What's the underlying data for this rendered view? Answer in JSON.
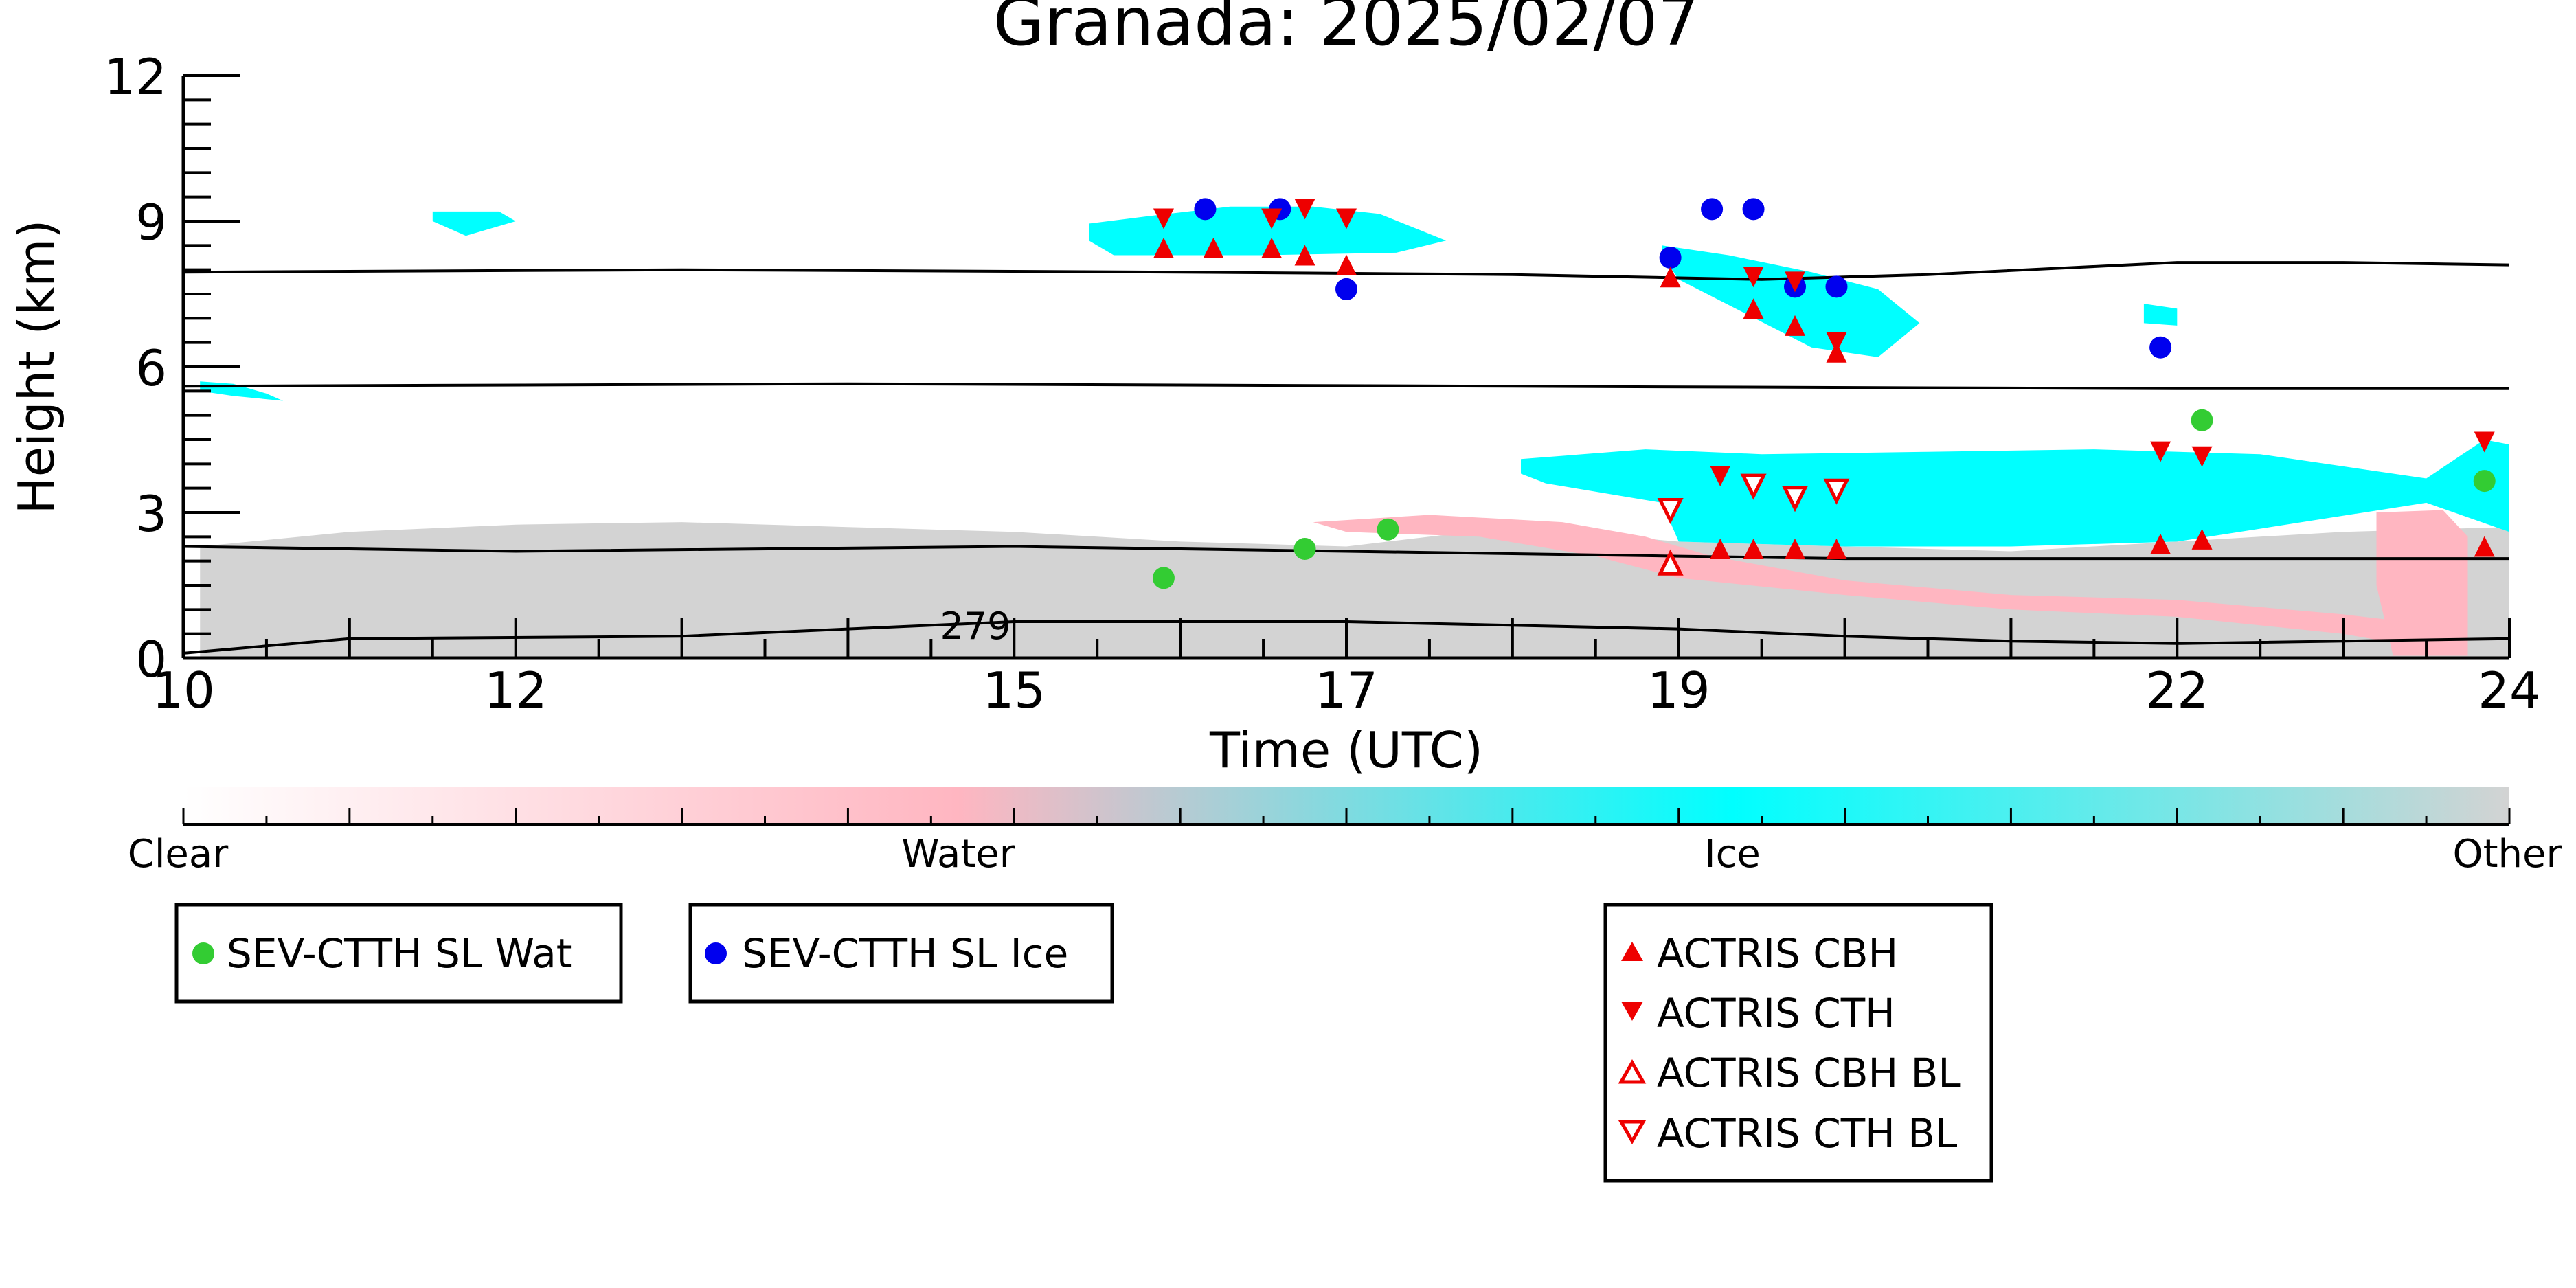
{
  "chart_data": {
    "type": "scatter",
    "title": "Granada: 2025/02/07",
    "xlabel": "Time (UTC)",
    "ylabel": "Height (km)",
    "xlim": [
      10,
      24
    ],
    "ylim": [
      0,
      12
    ],
    "x_tick_labels": [
      "10",
      "12",
      "15",
      "17",
      "19",
      "22",
      "24"
    ],
    "y_tick_labels": [
      "0",
      "3",
      "6",
      "9",
      "12"
    ],
    "contour_label": "279",
    "colorbar": {
      "labels": [
        "Clear",
        "Water",
        "Ice",
        "Other"
      ],
      "colors": [
        "#ffffff",
        "#ffb6c1",
        "#00ffff",
        "#d3d3d3"
      ]
    },
    "legend": {
      "sev": [
        "SEV-CTTH SL Wat",
        "SEV-CTTH SL Ice"
      ],
      "actris": [
        "ACTRIS CBH",
        "ACTRIS CTH",
        "ACTRIS CBH BL",
        "ACTRIS CTH BL"
      ]
    },
    "colors": {
      "water_cloud": "#ffb6c1",
      "ice_cloud": "#00ffff",
      "other": "#d3d3d3",
      "sev_water": "#33cc33",
      "sev_ice": "#0000ee",
      "actris": "#ee0000"
    },
    "series": [
      {
        "name": "SEV-CTTH SL Wat",
        "marker": "circle",
        "points": [
          [
            15.9,
            1.65
          ],
          [
            16.75,
            2.25
          ],
          [
            17.25,
            2.65
          ],
          [
            22.15,
            4.9
          ],
          [
            23.85,
            3.65
          ]
        ]
      },
      {
        "name": "SEV-CTTH SL Ice",
        "marker": "circle",
        "points": [
          [
            16.15,
            9.25
          ],
          [
            16.6,
            9.25
          ],
          [
            17.0,
            7.6
          ],
          [
            18.95,
            8.25
          ],
          [
            19.2,
            9.25
          ],
          [
            19.45,
            9.25
          ],
          [
            19.7,
            7.65
          ],
          [
            19.95,
            7.65
          ],
          [
            21.9,
            6.4
          ]
        ]
      },
      {
        "name": "ACTRIS CBH",
        "marker": "triangle-up",
        "points": [
          [
            15.9,
            8.45
          ],
          [
            16.2,
            8.45
          ],
          [
            16.55,
            8.45
          ],
          [
            16.75,
            8.3
          ],
          [
            17.0,
            8.1
          ],
          [
            18.95,
            7.85
          ],
          [
            19.25,
            2.25
          ],
          [
            19.45,
            7.2
          ],
          [
            19.45,
            2.25
          ],
          [
            19.7,
            6.85
          ],
          [
            19.7,
            2.25
          ],
          [
            19.95,
            6.3
          ],
          [
            19.95,
            2.25
          ],
          [
            21.9,
            2.35
          ],
          [
            22.15,
            2.45
          ],
          [
            23.85,
            2.3
          ]
        ]
      },
      {
        "name": "ACTRIS CTH",
        "marker": "triangle-down",
        "points": [
          [
            15.9,
            9.05
          ],
          [
            16.55,
            9.05
          ],
          [
            16.75,
            9.25
          ],
          [
            17.0,
            9.05
          ],
          [
            19.25,
            3.75
          ],
          [
            19.45,
            7.85
          ],
          [
            19.7,
            7.75
          ],
          [
            19.95,
            6.5
          ],
          [
            21.9,
            4.25
          ],
          [
            22.15,
            4.15
          ],
          [
            23.85,
            4.45
          ]
        ]
      },
      {
        "name": "ACTRIS CBH BL",
        "marker": "triangle-up-open",
        "points": [
          [
            18.95,
            1.95
          ]
        ]
      },
      {
        "name": "ACTRIS CTH BL",
        "marker": "triangle-down-open",
        "points": [
          [
            18.95,
            3.05
          ],
          [
            19.45,
            3.55
          ],
          [
            19.7,
            3.3
          ],
          [
            19.95,
            3.45
          ]
        ]
      }
    ],
    "contour_lines": [
      {
        "points": [
          [
            10,
            7.95
          ],
          [
            13,
            8.0
          ],
          [
            16,
            7.95
          ],
          [
            18,
            7.9
          ],
          [
            19.5,
            7.8
          ],
          [
            20.5,
            7.9
          ],
          [
            22,
            8.15
          ],
          [
            23,
            8.15
          ],
          [
            24,
            8.1
          ]
        ]
      },
      {
        "points": [
          [
            10,
            5.6
          ],
          [
            14,
            5.65
          ],
          [
            18,
            5.6
          ],
          [
            22,
            5.55
          ],
          [
            24,
            5.55
          ]
        ]
      },
      {
        "points": [
          [
            10,
            2.3
          ],
          [
            12,
            2.2
          ],
          [
            15,
            2.3
          ],
          [
            17,
            2.2
          ],
          [
            19,
            2.1
          ],
          [
            20,
            2.05
          ],
          [
            22,
            2.05
          ],
          [
            24,
            2.05
          ]
        ]
      },
      {
        "points": [
          [
            10,
            0.1
          ],
          [
            11,
            0.4
          ],
          [
            13,
            0.45
          ],
          [
            15,
            0.75
          ],
          [
            17,
            0.75
          ],
          [
            19,
            0.6
          ],
          [
            20,
            0.45
          ],
          [
            21,
            0.35
          ],
          [
            22,
            0.3
          ],
          [
            24,
            0.4
          ]
        ]
      }
    ],
    "cloud_regions": [
      {
        "type": "other",
        "points": [
          [
            10.1,
            0
          ],
          [
            10.1,
            2.3
          ],
          [
            11,
            2.6
          ],
          [
            12,
            2.75
          ],
          [
            13,
            2.8
          ],
          [
            14,
            2.7
          ],
          [
            15,
            2.6
          ],
          [
            15.5,
            2.5
          ],
          [
            16,
            2.4
          ],
          [
            16.5,
            2.35
          ],
          [
            17,
            2.3
          ],
          [
            17.5,
            2.5
          ],
          [
            18,
            2.7
          ],
          [
            19,
            2.4
          ],
          [
            20,
            2.3
          ],
          [
            21,
            2.2
          ],
          [
            22,
            2.4
          ],
          [
            22.5,
            2.5
          ],
          [
            23,
            2.6
          ],
          [
            24,
            2.7
          ],
          [
            24,
            0
          ]
        ]
      },
      {
        "type": "ice",
        "points": [
          [
            15.45,
            8.95
          ],
          [
            15.8,
            9.1
          ],
          [
            16.3,
            9.3
          ],
          [
            16.8,
            9.3
          ],
          [
            17.2,
            9.15
          ],
          [
            17.6,
            8.6
          ],
          [
            17.3,
            8.35
          ],
          [
            16.5,
            8.3
          ],
          [
            15.6,
            8.3
          ],
          [
            15.45,
            8.6
          ]
        ]
      },
      {
        "type": "ice",
        "points": [
          [
            11.5,
            9.2
          ],
          [
            11.9,
            9.2
          ],
          [
            12.0,
            9.0
          ],
          [
            11.7,
            8.7
          ],
          [
            11.5,
            9.0
          ]
        ]
      },
      {
        "type": "ice",
        "points": [
          [
            10.1,
            5.7
          ],
          [
            10.3,
            5.65
          ],
          [
            10.5,
            5.45
          ],
          [
            10.6,
            5.3
          ],
          [
            10.3,
            5.4
          ],
          [
            10.1,
            5.5
          ]
        ]
      },
      {
        "type": "ice",
        "points": [
          [
            18.9,
            8.5
          ],
          [
            19.3,
            8.3
          ],
          [
            19.8,
            7.95
          ],
          [
            20.2,
            7.6
          ],
          [
            20.45,
            6.9
          ],
          [
            20.2,
            6.2
          ],
          [
            19.8,
            6.4
          ],
          [
            19.4,
            7.1
          ],
          [
            19.0,
            7.8
          ],
          [
            18.9,
            8.3
          ]
        ]
      },
      {
        "type": "ice",
        "points": [
          [
            21.8,
            7.3
          ],
          [
            22.0,
            7.2
          ],
          [
            22.0,
            6.85
          ],
          [
            21.8,
            6.9
          ]
        ]
      },
      {
        "type": "ice",
        "points": [
          [
            18.05,
            4.1
          ],
          [
            18.8,
            4.3
          ],
          [
            19.5,
            4.2
          ],
          [
            20.5,
            4.25
          ],
          [
            21.5,
            4.3
          ],
          [
            22.5,
            4.2
          ],
          [
            23.5,
            3.7
          ],
          [
            23.85,
            4.5
          ],
          [
            24,
            4.4
          ],
          [
            24,
            2.6
          ],
          [
            23.5,
            3.2
          ],
          [
            22,
            2.4
          ],
          [
            21,
            2.3
          ],
          [
            20,
            2.3
          ],
          [
            19,
            2.4
          ],
          [
            18.9,
            3.2
          ],
          [
            18.2,
            3.6
          ],
          [
            18.05,
            3.8
          ]
        ]
      },
      {
        "type": "water",
        "points": [
          [
            16.8,
            2.8
          ],
          [
            17.5,
            2.95
          ],
          [
            18.3,
            2.8
          ],
          [
            18.8,
            2.5
          ],
          [
            19.2,
            2.1
          ],
          [
            20,
            1.6
          ],
          [
            21,
            1.3
          ],
          [
            22,
            1.2
          ],
          [
            23,
            0.9
          ],
          [
            23.5,
            0.7
          ],
          [
            23.5,
            0.2
          ],
          [
            23.0,
            0.5
          ],
          [
            22,
            0.85
          ],
          [
            21,
            1.0
          ],
          [
            20,
            1.3
          ],
          [
            19,
            1.65
          ],
          [
            18.5,
            2.1
          ],
          [
            17.8,
            2.5
          ],
          [
            17.0,
            2.6
          ]
        ]
      },
      {
        "type": "water",
        "points": [
          [
            23.2,
            3.0
          ],
          [
            23.6,
            3.05
          ],
          [
            23.75,
            2.5
          ],
          [
            23.75,
            0.05
          ],
          [
            23.3,
            0.05
          ],
          [
            23.2,
            1.5
          ]
        ]
      }
    ]
  }
}
